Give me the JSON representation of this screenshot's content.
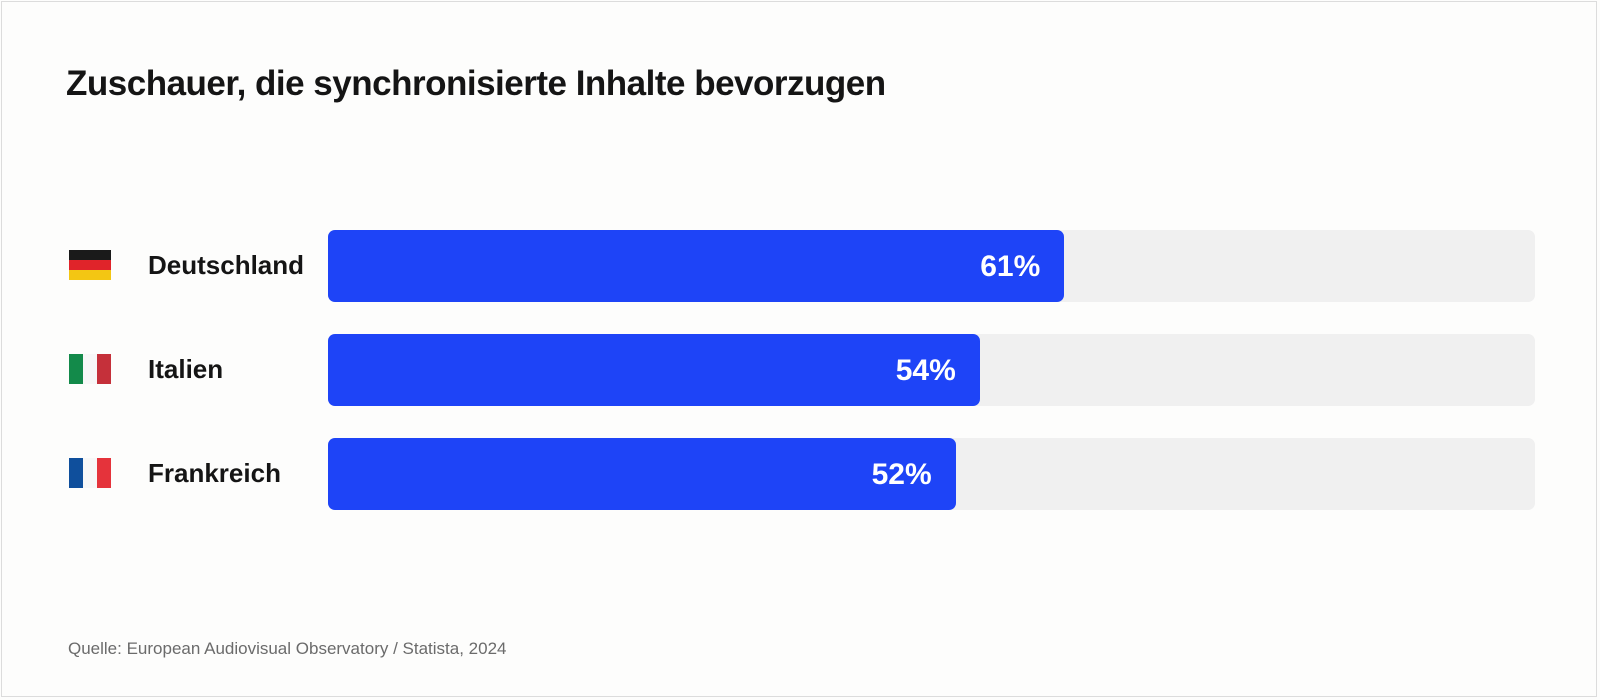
{
  "chart_data": {
    "type": "bar",
    "orientation": "horizontal",
    "title": "Zuschauer, die synchronisierte Inhalte bevorzugen",
    "categories": [
      "Deutschland",
      "Italien",
      "Frankreich"
    ],
    "values": [
      61,
      54,
      52
    ],
    "value_labels": [
      "61%",
      "54%",
      "52%"
    ],
    "flags": [
      "germany-flag",
      "italy-flag",
      "france-flag"
    ],
    "xlim": [
      0,
      100
    ],
    "grid": false,
    "colors": {
      "bar": "#1e44f7",
      "track": "#f0f0f0"
    },
    "source": "Quelle: European Audiovisual Observatory / Statista, 2024"
  }
}
